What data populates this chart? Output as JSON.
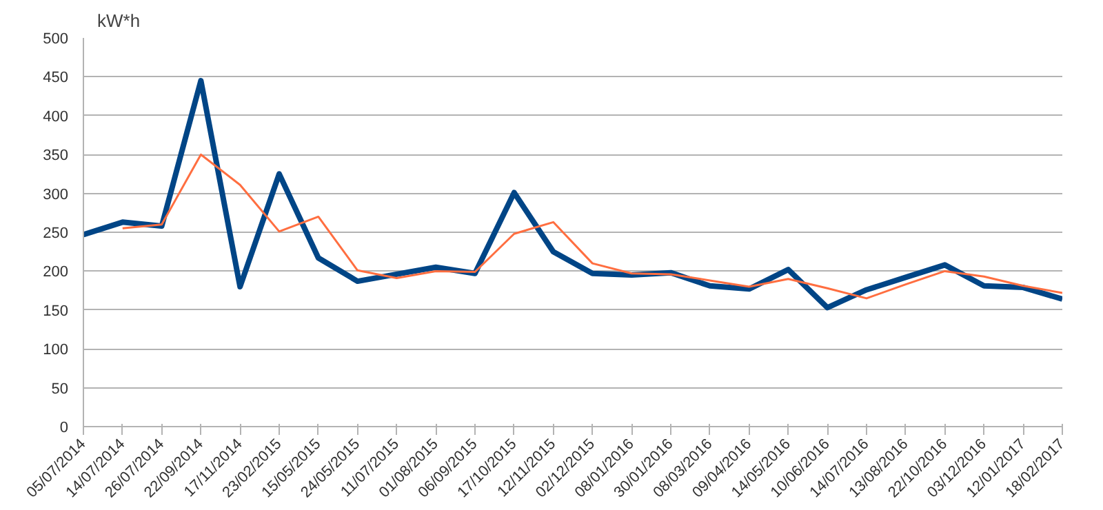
{
  "chart_data": {
    "type": "line",
    "ylabel": "kW*h",
    "categories": [
      "05/07/2014",
      "14/07/2014",
      "26/07/2014",
      "22/09/2014",
      "17/11/2014",
      "23/02/2015",
      "15/05/2015",
      "24/05/2015",
      "11/07/2015",
      "01/08/2015",
      "06/09/2015",
      "17/10/2015",
      "12/11/2015",
      "02/12/2015",
      "08/01/2016",
      "30/01/2016",
      "08/03/2016",
      "09/04/2016",
      "14/05/2016",
      "10/06/2016",
      "14/07/2016",
      "13/08/2016",
      "22/10/2016",
      "03/12/2016",
      "12/01/2017",
      "18/02/2017"
    ],
    "series": [
      {
        "color": "#004586",
        "values": [
          247,
          263,
          258,
          445,
          180,
          325,
          217,
          187,
          196,
          205,
          197,
          301,
          225,
          197,
          195,
          198,
          181,
          177,
          202,
          153,
          176,
          192,
          208,
          181,
          179,
          164
        ]
      },
      {
        "color": "#ff6e40",
        "values": [
          null,
          255,
          260,
          350,
          311,
          251,
          270,
          201,
          191,
          200,
          199,
          248,
          263,
          210,
          197,
          196,
          188,
          180,
          190,
          178,
          165,
          183,
          200,
          193,
          181,
          172
        ]
      }
    ],
    "ylim": [
      0,
      500
    ],
    "yticks": [
      0,
      50,
      100,
      150,
      200,
      250,
      300,
      350,
      400,
      450,
      500
    ],
    "grid": "y",
    "marker": "none",
    "line_style": "solid"
  }
}
